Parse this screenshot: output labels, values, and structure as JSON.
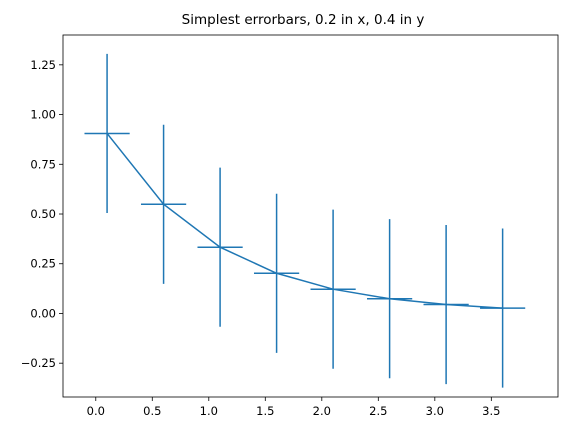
{
  "chart_data": {
    "type": "line",
    "title": "Simplest errorbars, 0.2 in x, 0.4 in y",
    "xlabel": "",
    "ylabel": "",
    "xlim": [
      -0.29,
      4.09
    ],
    "ylim": [
      -0.42,
      1.4
    ],
    "xticks": [
      0.0,
      0.5,
      1.0,
      1.5,
      2.0,
      2.5,
      3.0,
      3.5
    ],
    "xtick_labels": [
      "0.0",
      "0.5",
      "1.0",
      "1.5",
      "2.0",
      "2.5",
      "3.0",
      "3.5"
    ],
    "yticks": [
      -0.25,
      0.0,
      0.25,
      0.5,
      0.75,
      1.0,
      1.25
    ],
    "ytick_labels": [
      "−0.25",
      "0.00",
      "0.25",
      "0.50",
      "0.75",
      "1.00",
      "1.25"
    ],
    "grid": false,
    "legend": null,
    "color": "#1f77b4",
    "series": [
      {
        "x": [
          0.1,
          0.6,
          1.1,
          1.6,
          2.1,
          2.6,
          3.1,
          3.6
        ],
        "y": [
          0.905,
          0.549,
          0.333,
          0.202,
          0.122,
          0.074,
          0.045,
          0.027
        ],
        "xerr": 0.2,
        "yerr": 0.4
      }
    ]
  }
}
